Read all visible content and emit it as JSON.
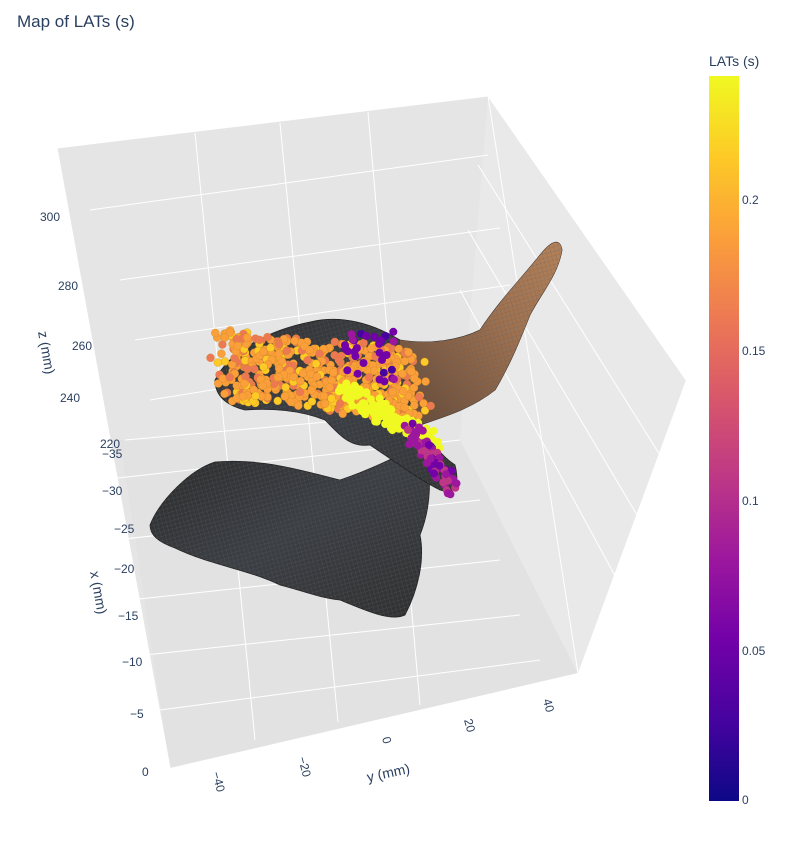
{
  "chart_data": {
    "type": "scatter",
    "title": "Map of LATs (s)",
    "axes": {
      "x": {
        "title": "x (mm)",
        "ticks": [
          "−35",
          "−30",
          "−25",
          "−20",
          "−15",
          "−10",
          "−5",
          "0"
        ]
      },
      "y": {
        "title": "y (mm)",
        "ticks": [
          "−40",
          "−20",
          "0",
          "20",
          "40"
        ]
      },
      "z": {
        "title": "z (mm)",
        "ticks": [
          "220",
          "240",
          "260",
          "280",
          "300"
        ]
      }
    },
    "colorbar": {
      "title": "LATs (s)",
      "range": [
        0,
        0.24
      ],
      "ticks": [
        "0",
        "0.05",
        "0.1",
        "0.15",
        "0.2"
      ],
      "colorscale": [
        "#0d0887",
        "#46039f",
        "#7201a8",
        "#9c179e",
        "#bd3786",
        "#d8576b",
        "#ed7953",
        "#fb9f3a",
        "#fdca26",
        "#f0f921"
      ]
    },
    "mesh_color": "#333333",
    "scene_bg": "#e5e5e5",
    "grid_color": "#ffffff"
  }
}
